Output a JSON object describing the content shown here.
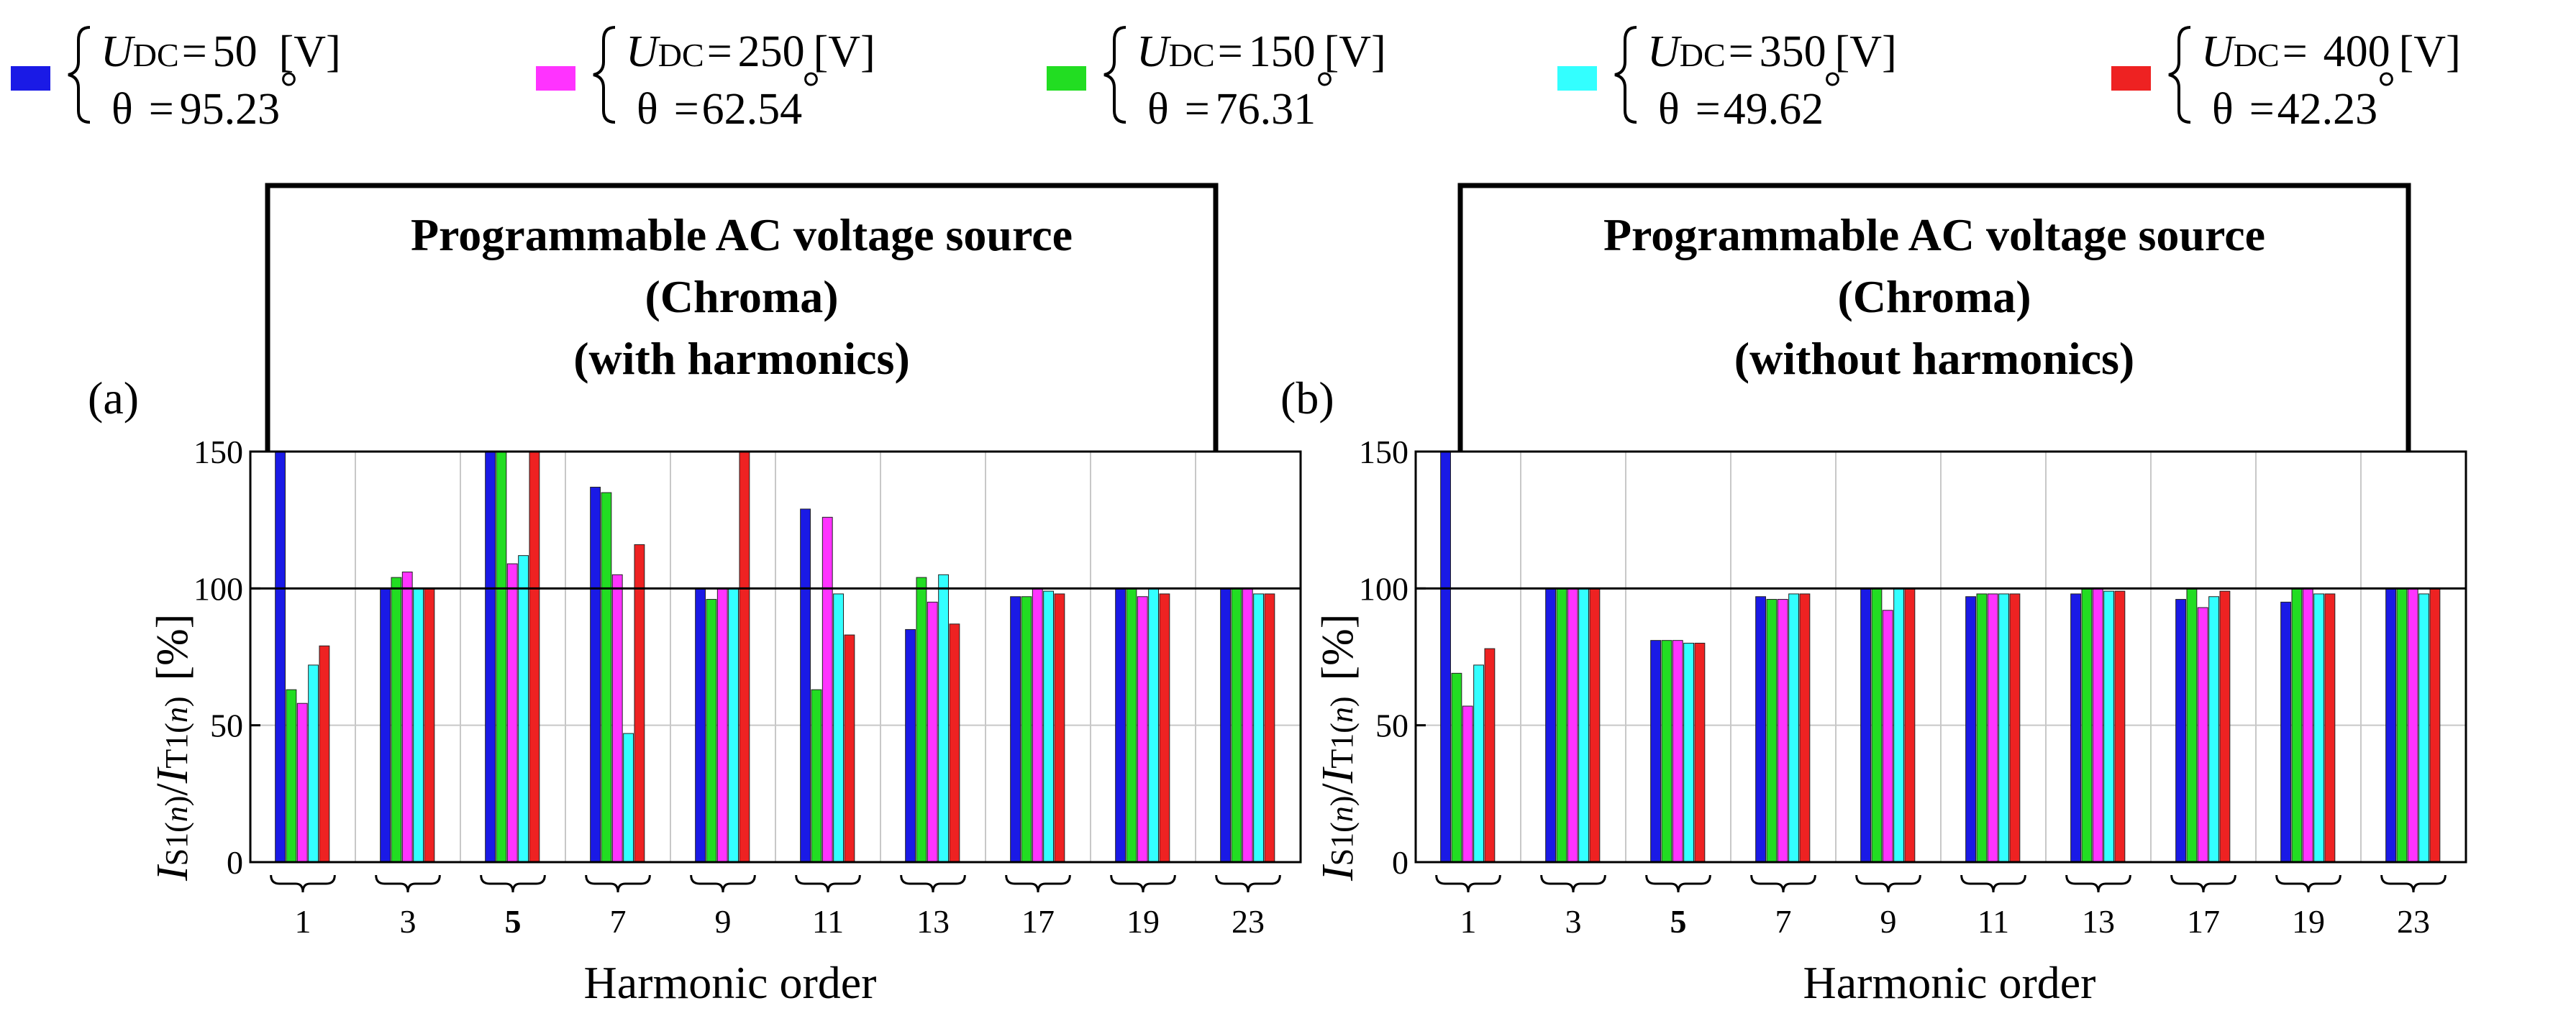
{
  "legend": [
    {
      "swatch_color": "#1a1ae6",
      "u_symbol": "U",
      "u_sub": "DC",
      "eq": "=",
      "u_value": "50",
      "u_unit": "[V]",
      "theta_symbol": "θ",
      "theta_value": "95.23",
      "deg": "°"
    },
    {
      "swatch_color": "#ff33ff",
      "u_symbol": "U",
      "u_sub": "DC",
      "eq": "=",
      "u_value": "250",
      "u_unit": "[V]",
      "theta_symbol": "θ",
      "theta_value": "62.54",
      "deg": "°"
    },
    {
      "swatch_color": "#22dd22",
      "u_symbol": "U",
      "u_sub": "DC",
      "eq": "=",
      "u_value": "150",
      "u_unit": "[V]",
      "theta_symbol": "θ",
      "theta_value": "76.31",
      "deg": "°"
    },
    {
      "swatch_color": "#33ffff",
      "u_symbol": "U",
      "u_sub": "DC",
      "eq": "=",
      "u_value": "350",
      "u_unit": "[V]",
      "theta_symbol": "θ",
      "theta_value": "49.62",
      "deg": "°"
    },
    {
      "swatch_color": "#ee2222",
      "u_symbol": "U",
      "u_sub": "DC",
      "eq": "=",
      "u_value": "400",
      "u_unit": "[V]",
      "theta_symbol": "θ",
      "theta_value": "42.23",
      "deg": "°"
    }
  ],
  "ylabel": {
    "i1": "I",
    "s1_sub": "S1(",
    "n1": "n",
    "close1": ")",
    "slash": "/",
    "i2": "I",
    "t1_sub": "T1(",
    "n2": "n",
    "close2": ")",
    "unit": "[%]"
  },
  "chart_data": [
    {
      "type": "bar",
      "panel_label": "(a)",
      "box_lines": [
        "Programmable AC voltage source",
        "(Chroma)",
        "(with harmonics)"
      ],
      "xlabel": "Harmonic order",
      "ylabel": "IS1(n)/IT1(n) [%]",
      "ylim": [
        0,
        150
      ],
      "yticks": [
        "0",
        "50",
        "100",
        "150"
      ],
      "grid": true,
      "reference_line": 100,
      "categories": [
        "1",
        "3",
        "5",
        "7",
        "9",
        "11",
        "13",
        "17",
        "19",
        "23"
      ],
      "bold_categories": [
        "5"
      ],
      "series": [
        {
          "name": "UDC=50 [V], θ=95.23°",
          "color": "#1a1ae6",
          "values": [
            150,
            100,
            150,
            137,
            100,
            129,
            85,
            97,
            100,
            100
          ]
        },
        {
          "name": "UDC=150 [V], θ=76.31°",
          "color": "#22dd22",
          "values": [
            63,
            104,
            150,
            135,
            96,
            63,
            104,
            97,
            100,
            100
          ]
        },
        {
          "name": "UDC=250 [V], θ=62.54°",
          "color": "#ff33ff",
          "values": [
            58,
            106,
            109,
            105,
            100,
            126,
            95,
            100,
            97,
            100
          ]
        },
        {
          "name": "UDC=350 [V], θ=49.62°",
          "color": "#33ffff",
          "values": [
            72,
            100,
            112,
            47,
            100,
            98,
            105,
            99,
            100,
            98
          ]
        },
        {
          "name": "UDC=400 [V], θ=42.23°",
          "color": "#ee2222",
          "values": [
            79,
            100,
            150,
            116,
            150,
            83,
            87,
            98,
            98,
            98
          ]
        }
      ]
    },
    {
      "type": "bar",
      "panel_label": "(b)",
      "box_lines": [
        "Programmable AC voltage source",
        "(Chroma)",
        "(without harmonics)"
      ],
      "xlabel": "Harmonic order",
      "ylabel": "IS1(n)/IT1(n) [%]",
      "ylim": [
        0,
        150
      ],
      "yticks": [
        "0",
        "50",
        "100",
        "150"
      ],
      "grid": true,
      "reference_line": 100,
      "categories": [
        "1",
        "3",
        "5",
        "7",
        "9",
        "11",
        "13",
        "17",
        "19",
        "23"
      ],
      "bold_categories": [
        "5"
      ],
      "series": [
        {
          "name": "UDC=50 [V], θ=95.23°",
          "color": "#1a1ae6",
          "values": [
            150,
            100,
            81,
            97,
            100,
            97,
            98,
            96,
            95,
            100
          ]
        },
        {
          "name": "UDC=150 [V], θ=76.31°",
          "color": "#22dd22",
          "values": [
            69,
            100,
            81,
            96,
            100,
            98,
            100,
            100,
            100,
            100
          ]
        },
        {
          "name": "UDC=250 [V], θ=62.54°",
          "color": "#ff33ff",
          "values": [
            57,
            100,
            81,
            96,
            92,
            98,
            100,
            93,
            100,
            100
          ]
        },
        {
          "name": "UDC=350 [V], θ=49.62°",
          "color": "#33ffff",
          "values": [
            72,
            100,
            80,
            98,
            100,
            98,
            99,
            97,
            98,
            98
          ]
        },
        {
          "name": "UDC=400 [V], θ=42.23°",
          "color": "#ee2222",
          "values": [
            78,
            100,
            80,
            98,
            100,
            98,
            99,
            99,
            98,
            100
          ]
        }
      ]
    }
  ]
}
